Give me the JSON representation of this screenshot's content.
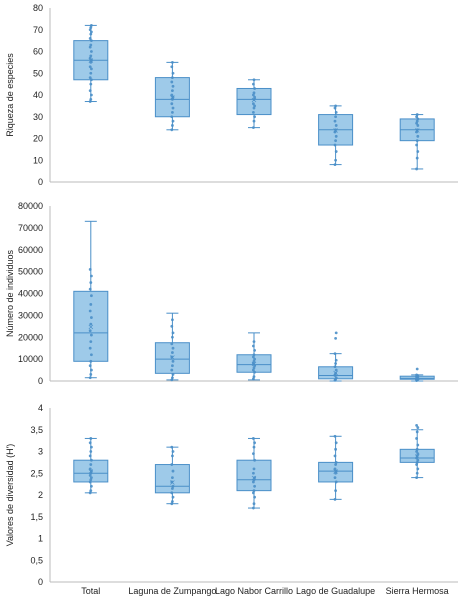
{
  "style": {
    "box_fill": "#9ecae9",
    "box_stroke": "#4a8fc8",
    "point_color": "#4a8fc8",
    "axis_color": "#bbbbbb"
  },
  "chart_data": [
    {
      "type": "box",
      "ylabel": "Riqueza de especies",
      "ylim": [
        0,
        80
      ],
      "yticks": [
        "0",
        "10",
        "20",
        "30",
        "40",
        "50",
        "60",
        "70",
        "80"
      ],
      "categories": [
        "Total",
        "Laguna de Zumpango",
        "Lago Nabor Carrillo",
        "Lago de Guadalupe",
        "Sierra Hermosa"
      ],
      "boxes": [
        {
          "whisker_low": 37,
          "q1": 47,
          "median": 56,
          "mean": 56,
          "q3": 65,
          "whisker_high": 72,
          "points": [
            37,
            38,
            40,
            42,
            45,
            47,
            48,
            50,
            52,
            53,
            55,
            56,
            57,
            58,
            60,
            62,
            63,
            65,
            66,
            68,
            69,
            70,
            71,
            72
          ]
        },
        {
          "whisker_low": 24,
          "q1": 30,
          "median": 38,
          "mean": 39,
          "q3": 48,
          "whisker_high": 55,
          "points": [
            24,
            26,
            28,
            30,
            32,
            34,
            36,
            38,
            39,
            40,
            42,
            44,
            46,
            48,
            50,
            53,
            55
          ]
        },
        {
          "whisker_low": 25,
          "q1": 31,
          "median": 38,
          "mean": 38,
          "q3": 43,
          "whisker_high": 47,
          "points": [
            25,
            28,
            30,
            32,
            34,
            35,
            36,
            38,
            39,
            40,
            41,
            43,
            45,
            47
          ]
        },
        {
          "whisker_low": 8,
          "q1": 17,
          "median": 24,
          "mean": 24,
          "q3": 31,
          "whisker_high": 35,
          "points": [
            8,
            10,
            14,
            17,
            19,
            21,
            23,
            24,
            26,
            28,
            30,
            32,
            34,
            35
          ]
        },
        {
          "whisker_low": 6,
          "q1": 19,
          "median": 24,
          "mean": 24,
          "q3": 29,
          "whisker_high": 31,
          "points": [
            6,
            11,
            14,
            17,
            19,
            21,
            23,
            24,
            26,
            27,
            28,
            29,
            30,
            31
          ]
        }
      ]
    },
    {
      "type": "box",
      "ylabel": "Número de individuos",
      "ylim": [
        0,
        80000
      ],
      "yticks": [
        "0",
        "10000",
        "20000",
        "30000",
        "40000",
        "50000",
        "60000",
        "70000",
        "80000"
      ],
      "categories": [
        "Total",
        "Laguna de Zumpango",
        "Lago Nabor Carrillo",
        "Lago de Guadalupe",
        "Sierra Hermosa"
      ],
      "boxes": [
        {
          "whisker_low": 1500,
          "q1": 9000,
          "median": 22000,
          "mean": 25000,
          "q3": 41000,
          "whisker_high": 73000,
          "points": [
            1500,
            3000,
            5000,
            7000,
            9000,
            12000,
            15000,
            18000,
            21000,
            23000,
            26000,
            29000,
            32000,
            35000,
            39000,
            42000,
            45000,
            48000,
            51000
          ]
        },
        {
          "whisker_low": 500,
          "q1": 3500,
          "median": 10000,
          "mean": 11000,
          "q3": 17500,
          "whisker_high": 31000,
          "points": [
            500,
            1500,
            3000,
            5000,
            7000,
            9000,
            11000,
            13000,
            15000,
            17000,
            20000,
            22000,
            25000,
            28000
          ]
        },
        {
          "whisker_low": 500,
          "q1": 4000,
          "median": 7500,
          "mean": 8000,
          "q3": 12000,
          "whisker_high": 22000,
          "points": [
            1000,
            2000,
            4000,
            5000,
            6000,
            7000,
            8000,
            9000,
            10000,
            11000,
            12000,
            14000,
            16000,
            18000
          ]
        },
        {
          "whisker_low": 0,
          "q1": 1000,
          "median": 2500,
          "mean": 4000,
          "q3": 6500,
          "whisker_high": 12500,
          "points": [
            300,
            800,
            1500,
            2500,
            3500,
            5000,
            6500,
            8000,
            9500,
            12500,
            19500,
            22000
          ]
        },
        {
          "whisker_low": 0,
          "q1": 800,
          "median": 1200,
          "mean": 1500,
          "q3": 2200,
          "whisker_high": 2800,
          "points": [
            200,
            500,
            800,
            1000,
            1200,
            1500,
            1800,
            2100,
            2500,
            2800,
            5500
          ]
        }
      ]
    },
    {
      "type": "box",
      "ylabel": "Valores de diversidad (H')",
      "ylim": [
        0,
        4
      ],
      "yticks": [
        "0",
        "0,5",
        "1",
        "1,5",
        "2",
        "2,5",
        "3",
        "3,5",
        "4"
      ],
      "categories": [
        "Total",
        "Laguna de Zumpango",
        "Lago Nabor Carrillo",
        "Lago de Guadalupe",
        "Sierra Hermosa"
      ],
      "boxes": [
        {
          "whisker_low": 2.05,
          "q1": 2.3,
          "median": 2.5,
          "mean": 2.55,
          "q3": 2.8,
          "whisker_high": 3.3,
          "points": [
            2.05,
            2.1,
            2.2,
            2.3,
            2.35,
            2.4,
            2.45,
            2.5,
            2.55,
            2.6,
            2.7,
            2.8,
            2.9,
            3.0,
            3.1,
            3.2,
            3.3
          ]
        },
        {
          "whisker_low": 1.8,
          "q1": 2.05,
          "median": 2.2,
          "mean": 2.3,
          "q3": 2.7,
          "whisker_high": 3.1,
          "points": [
            1.8,
            1.85,
            1.95,
            2.05,
            2.15,
            2.2,
            2.3,
            2.4,
            2.55,
            2.7,
            2.9,
            3.0,
            3.1
          ]
        },
        {
          "whisker_low": 1.7,
          "q1": 2.1,
          "median": 2.35,
          "mean": 2.4,
          "q3": 2.8,
          "whisker_high": 3.3,
          "points": [
            1.7,
            1.8,
            1.95,
            2.05,
            2.1,
            2.2,
            2.3,
            2.35,
            2.4,
            2.5,
            2.6,
            2.8,
            2.95,
            3.1,
            3.2,
            3.3
          ]
        },
        {
          "whisker_low": 1.9,
          "q1": 2.3,
          "median": 2.55,
          "mean": 2.55,
          "q3": 2.75,
          "whisker_high": 3.35,
          "points": [
            1.9,
            2.1,
            2.3,
            2.4,
            2.5,
            2.55,
            2.6,
            2.7,
            2.75,
            2.9,
            3.05,
            3.2,
            3.35
          ]
        },
        {
          "whisker_low": 2.4,
          "q1": 2.75,
          "median": 2.85,
          "mean": 2.9,
          "q3": 3.05,
          "whisker_high": 3.5,
          "points": [
            2.4,
            2.5,
            2.6,
            2.7,
            2.75,
            2.8,
            2.85,
            2.9,
            2.95,
            3.0,
            3.05,
            3.15,
            3.3,
            3.45,
            3.55,
            3.6
          ]
        }
      ]
    }
  ]
}
